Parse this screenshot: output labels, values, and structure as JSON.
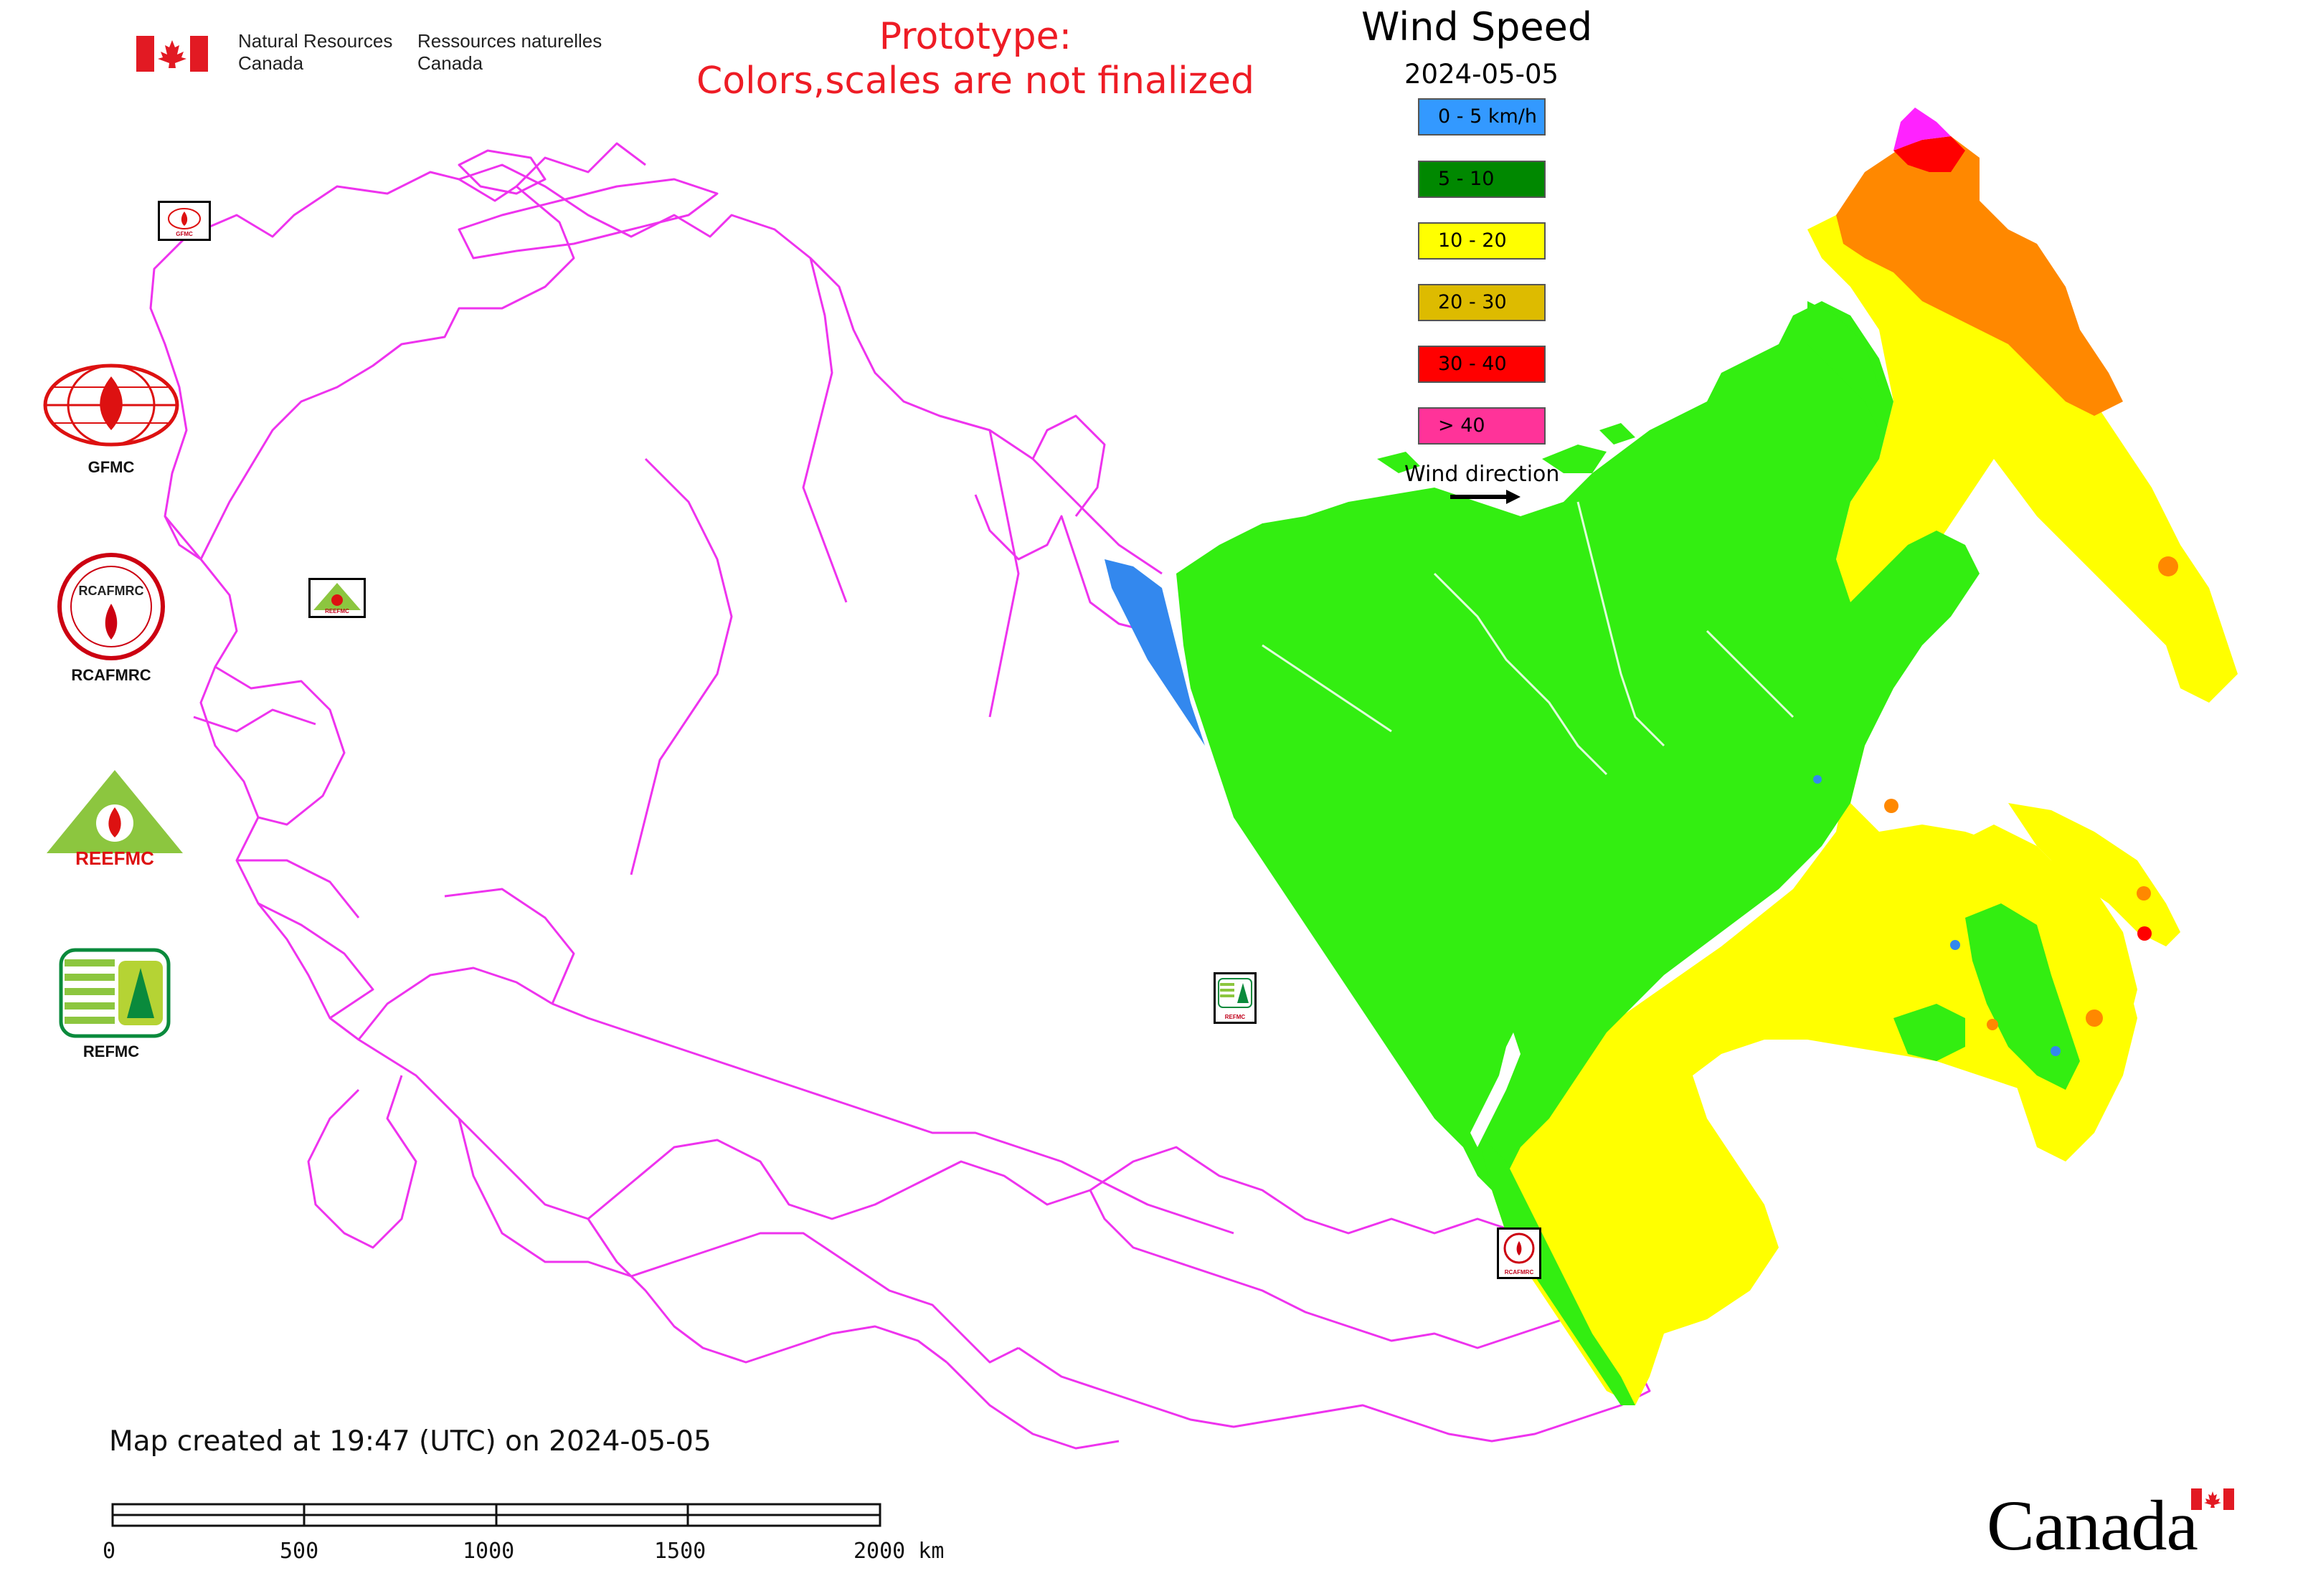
{
  "header": {
    "nrcan_en_line1": "Natural Resources",
    "nrcan_en_line2": "Canada",
    "nrcan_fr_line1": "Ressources naturelles",
    "nrcan_fr_line2": "Canada",
    "prototype_line1": "Prototype:",
    "prototype_line2": "Colors,scales are not finalized"
  },
  "legend": {
    "title": "Wind Speed",
    "date": "2024-05-05",
    "classes": [
      {
        "label": "0 - 5 km/h",
        "color": "#3399ff"
      },
      {
        "label": "5 - 10",
        "color": "#008800"
      },
      {
        "label": "10 - 20",
        "color": "#ffff00"
      },
      {
        "label": "20 - 30",
        "color": "#ddbb00"
      },
      {
        "label": "30 - 40",
        "color": "#ff0000"
      },
      {
        "label": "> 40",
        "color": "#ff3399"
      }
    ],
    "wind_direction_label": "Wind direction"
  },
  "map_fill_colors": {
    "boundary": "#ee33ee",
    "calm": "#3388ee",
    "low": "#33ee11",
    "moderate": "#ffff00",
    "strong": "#ff8800",
    "very_strong": "#ff0000",
    "extreme": "#ff22ff"
  },
  "sidebar_logos": [
    {
      "name": "gfmc",
      "label": "GFMC"
    },
    {
      "name": "rcafmrc",
      "label": "RCAFMRC"
    },
    {
      "name": "reefmc",
      "label": "REEFMC"
    },
    {
      "name": "refmc",
      "label": "REFMC"
    }
  ],
  "footer": {
    "created_note": "Map created at 19:47 (UTC) on 2024-05-05",
    "scale_ticks": [
      "0",
      "500",
      "1000",
      "1500",
      "2000 km"
    ],
    "wordmark": "Canada"
  },
  "map_sites": [
    {
      "name": "gfmc",
      "label": "GFMC"
    },
    {
      "name": "reefmc",
      "label": "REEFMC"
    },
    {
      "name": "refmc",
      "label": "REFMC"
    },
    {
      "name": "rcafmrc",
      "label": "RCAFMRC"
    }
  ]
}
